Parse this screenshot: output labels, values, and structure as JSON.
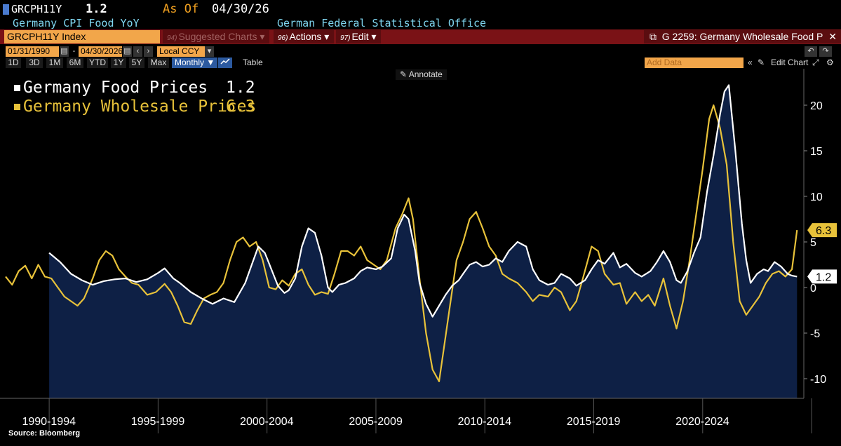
{
  "header": {
    "ticker": "GRCPH11Y",
    "last_value": "1.2",
    "as_of_label": "As Of",
    "as_of_date": "04/30/26",
    "description": "Germany CPI Food YoY",
    "source_org": "German Federal Statistical Office"
  },
  "toolbar": {
    "security": "GRCPH11Y Index",
    "suggested_num": "94)",
    "suggested_label": "Suggested Charts",
    "actions_num": "96)",
    "actions_label": "Actions",
    "edit_num": "97)",
    "edit_label": "Edit",
    "chart_title": "G 2259: Germany Wholesale Food P"
  },
  "date_controls": {
    "start_date": "01/31/1990",
    "end_date": "04/30/2026",
    "currency": "Local CCY"
  },
  "periods": [
    "1D",
    "3D",
    "1M",
    "6M",
    "YTD",
    "1Y",
    "5Y",
    "Max"
  ],
  "frequency": "Monthly",
  "table_label": "Table",
  "add_data_placeholder": "Add Data",
  "edit_chart_label": "Edit Chart",
  "annotate_label": "Annotate",
  "legend": {
    "series": [
      {
        "name": "Germany Food Prices",
        "value": "1.2",
        "color": "#ffffff"
      },
      {
        "name": "Germany Wholesale Prices",
        "value": "6.3",
        "color": "#e8c23a"
      }
    ]
  },
  "source": "Source: Bloomberg",
  "colors": {
    "area_fill": "#0e2045",
    "food_line": "#ffffff",
    "wholesale_line": "#e8c23a",
    "brand_orange": "#f2a64a",
    "toolbar_red": "#7a1216"
  },
  "icons": [
    "square-bullet-icon",
    "calendar-icon",
    "chevron-left-icon",
    "chevron-right-icon",
    "dropdown-arrow-icon",
    "line-chart-icon",
    "external-link-icon",
    "undo-icon",
    "redo-icon",
    "pencil-icon",
    "gear-icon",
    "double-chevron-left-icon",
    "close-icon"
  ],
  "chart_data": {
    "type": "line",
    "x_labels": [
      "1990-1994",
      "1995-1999",
      "2000-2004",
      "2005-2009",
      "2010-2014",
      "2015-2019",
      "2020-2024"
    ],
    "y_ticks": [
      20,
      15,
      10,
      5,
      0,
      -5,
      -10
    ],
    "ylim": [
      -12,
      23.5
    ],
    "xlim": [
      1990.0,
      2026.45
    ],
    "grid": false,
    "legend_position": "top-left",
    "series": [
      {
        "name": "Germany Food Prices",
        "style": "line+area",
        "last_label": "1.2",
        "points": [
          [
            1992.0,
            3.8
          ],
          [
            1992.5,
            2.8
          ],
          [
            1993.0,
            1.5
          ],
          [
            1993.5,
            0.8
          ],
          [
            1994.0,
            0.3
          ],
          [
            1994.5,
            0.7
          ],
          [
            1995.0,
            0.9
          ],
          [
            1995.5,
            1.0
          ],
          [
            1996.0,
            0.6
          ],
          [
            1996.5,
            0.9
          ],
          [
            1997.0,
            1.6
          ],
          [
            1997.3,
            2.1
          ],
          [
            1997.7,
            1.0
          ],
          [
            1998.0,
            0.5
          ],
          [
            1998.5,
            -0.5
          ],
          [
            1999.0,
            -1.2
          ],
          [
            1999.5,
            -1.8
          ],
          [
            2000.0,
            -1.2
          ],
          [
            2000.5,
            -1.6
          ],
          [
            2001.0,
            0.5
          ],
          [
            2001.3,
            2.5
          ],
          [
            2001.6,
            4.5
          ],
          [
            2001.9,
            3.8
          ],
          [
            2002.2,
            2.0
          ],
          [
            2002.5,
            0.2
          ],
          [
            2002.8,
            -0.6
          ],
          [
            2003.0,
            -0.3
          ],
          [
            2003.3,
            1.0
          ],
          [
            2003.6,
            4.5
          ],
          [
            2003.9,
            6.5
          ],
          [
            2004.2,
            6.0
          ],
          [
            2004.5,
            3.5
          ],
          [
            2004.8,
            0.0
          ],
          [
            2005.0,
            -0.5
          ],
          [
            2005.3,
            0.3
          ],
          [
            2005.6,
            0.5
          ],
          [
            2006.0,
            1.0
          ],
          [
            2006.3,
            1.8
          ],
          [
            2006.6,
            2.2
          ],
          [
            2007.0,
            2.0
          ],
          [
            2007.3,
            2.3
          ],
          [
            2007.7,
            3.2
          ],
          [
            2008.0,
            6.5
          ],
          [
            2008.3,
            8.0
          ],
          [
            2008.5,
            7.5
          ],
          [
            2008.8,
            4.0
          ],
          [
            2009.0,
            0.5
          ],
          [
            2009.3,
            -1.8
          ],
          [
            2009.6,
            -3.2
          ],
          [
            2009.9,
            -2.0
          ],
          [
            2010.2,
            -0.8
          ],
          [
            2010.5,
            0.2
          ],
          [
            2010.8,
            0.8
          ],
          [
            2011.0,
            1.5
          ],
          [
            2011.3,
            2.5
          ],
          [
            2011.6,
            2.8
          ],
          [
            2011.9,
            2.3
          ],
          [
            2012.2,
            2.5
          ],
          [
            2012.5,
            3.2
          ],
          [
            2012.8,
            2.8
          ],
          [
            2013.1,
            4.0
          ],
          [
            2013.5,
            5.0
          ],
          [
            2013.9,
            4.5
          ],
          [
            2014.2,
            2.0
          ],
          [
            2014.5,
            0.8
          ],
          [
            2014.9,
            0.3
          ],
          [
            2015.2,
            0.5
          ],
          [
            2015.5,
            1.5
          ],
          [
            2015.9,
            1.0
          ],
          [
            2016.2,
            0.2
          ],
          [
            2016.6,
            0.8
          ],
          [
            2016.9,
            2.0
          ],
          [
            2017.2,
            3.0
          ],
          [
            2017.5,
            2.6
          ],
          [
            2017.9,
            3.8
          ],
          [
            2018.2,
            2.2
          ],
          [
            2018.5,
            2.6
          ],
          [
            2018.9,
            1.6
          ],
          [
            2019.2,
            1.2
          ],
          [
            2019.6,
            1.8
          ],
          [
            2019.9,
            2.8
          ],
          [
            2020.2,
            4.0
          ],
          [
            2020.5,
            2.8
          ],
          [
            2020.8,
            0.8
          ],
          [
            2021.0,
            0.5
          ],
          [
            2021.3,
            1.8
          ],
          [
            2021.6,
            3.8
          ],
          [
            2021.9,
            5.5
          ],
          [
            2022.2,
            10.5
          ],
          [
            2022.5,
            14.5
          ],
          [
            2022.8,
            19.0
          ],
          [
            2023.0,
            21.5
          ],
          [
            2023.2,
            22.2
          ],
          [
            2023.5,
            15.0
          ],
          [
            2023.8,
            7.0
          ],
          [
            2024.0,
            3.0
          ],
          [
            2024.2,
            0.5
          ],
          [
            2024.5,
            1.5
          ],
          [
            2024.8,
            2.0
          ],
          [
            2025.0,
            1.8
          ],
          [
            2025.3,
            2.8
          ],
          [
            2025.6,
            2.3
          ],
          [
            2025.9,
            1.5
          ],
          [
            2026.1,
            1.3
          ],
          [
            2026.33,
            1.2
          ]
        ]
      },
      {
        "name": "Germany Wholesale Prices",
        "style": "line",
        "last_label": "6.3",
        "points": [
          [
            1990.0,
            1.2
          ],
          [
            1990.3,
            0.3
          ],
          [
            1990.6,
            1.8
          ],
          [
            1990.9,
            2.4
          ],
          [
            1991.2,
            1.0
          ],
          [
            1991.5,
            2.5
          ],
          [
            1991.8,
            1.2
          ],
          [
            1992.1,
            1.0
          ],
          [
            1992.4,
            0.0
          ],
          [
            1992.7,
            -1.0
          ],
          [
            1993.0,
            -1.5
          ],
          [
            1993.3,
            -2.0
          ],
          [
            1993.6,
            -1.2
          ],
          [
            1994.0,
            1.0
          ],
          [
            1994.3,
            3.0
          ],
          [
            1994.6,
            4.0
          ],
          [
            1994.9,
            3.5
          ],
          [
            1995.2,
            2.0
          ],
          [
            1995.5,
            1.2
          ],
          [
            1995.8,
            0.5
          ],
          [
            1996.1,
            0.3
          ],
          [
            1996.5,
            -0.8
          ],
          [
            1996.9,
            -0.5
          ],
          [
            1997.3,
            0.4
          ],
          [
            1997.6,
            -0.5
          ],
          [
            1997.9,
            -2.0
          ],
          [
            1998.2,
            -3.8
          ],
          [
            1998.5,
            -4.0
          ],
          [
            1998.8,
            -2.5
          ],
          [
            1999.1,
            -1.2
          ],
          [
            1999.4,
            -0.8
          ],
          [
            1999.7,
            -0.5
          ],
          [
            2000.0,
            0.5
          ],
          [
            2000.3,
            3.0
          ],
          [
            2000.6,
            5.0
          ],
          [
            2000.9,
            5.5
          ],
          [
            2001.2,
            4.5
          ],
          [
            2001.5,
            5.0
          ],
          [
            2001.8,
            3.0
          ],
          [
            2002.1,
            0.0
          ],
          [
            2002.4,
            -0.2
          ],
          [
            2002.7,
            0.8
          ],
          [
            2003.0,
            0.2
          ],
          [
            2003.3,
            1.5
          ],
          [
            2003.6,
            2.0
          ],
          [
            2003.9,
            0.3
          ],
          [
            2004.2,
            -0.8
          ],
          [
            2004.5,
            -0.5
          ],
          [
            2004.8,
            -0.7
          ],
          [
            2005.1,
            1.5
          ],
          [
            2005.4,
            4.0
          ],
          [
            2005.7,
            4.0
          ],
          [
            2006.0,
            3.5
          ],
          [
            2006.3,
            4.5
          ],
          [
            2006.6,
            3.0
          ],
          [
            2006.9,
            2.5
          ],
          [
            2007.2,
            2.0
          ],
          [
            2007.5,
            3.0
          ],
          [
            2007.9,
            6.5
          ],
          [
            2008.2,
            8.0
          ],
          [
            2008.5,
            9.8
          ],
          [
            2008.7,
            7.5
          ],
          [
            2009.0,
            1.0
          ],
          [
            2009.3,
            -5.0
          ],
          [
            2009.6,
            -9.0
          ],
          [
            2009.9,
            -10.3
          ],
          [
            2010.1,
            -7.0
          ],
          [
            2010.4,
            -2.0
          ],
          [
            2010.7,
            3.0
          ],
          [
            2011.0,
            5.0
          ],
          [
            2011.3,
            7.5
          ],
          [
            2011.6,
            8.3
          ],
          [
            2011.9,
            6.5
          ],
          [
            2012.2,
            4.5
          ],
          [
            2012.5,
            3.5
          ],
          [
            2012.8,
            1.5
          ],
          [
            2013.1,
            1.0
          ],
          [
            2013.5,
            0.5
          ],
          [
            2013.9,
            -0.5
          ],
          [
            2014.2,
            -1.5
          ],
          [
            2014.5,
            -0.8
          ],
          [
            2014.9,
            -1.0
          ],
          [
            2015.2,
            0.0
          ],
          [
            2015.5,
            -0.5
          ],
          [
            2015.9,
            -2.5
          ],
          [
            2016.2,
            -1.5
          ],
          [
            2016.5,
            1.0
          ],
          [
            2016.9,
            4.5
          ],
          [
            2017.2,
            4.0
          ],
          [
            2017.5,
            1.5
          ],
          [
            2017.9,
            0.3
          ],
          [
            2018.2,
            0.5
          ],
          [
            2018.5,
            -1.8
          ],
          [
            2018.9,
            -0.5
          ],
          [
            2019.2,
            -1.5
          ],
          [
            2019.5,
            -0.8
          ],
          [
            2019.8,
            -2.0
          ],
          [
            2020.2,
            1.0
          ],
          [
            2020.5,
            -2.0
          ],
          [
            2020.8,
            -4.5
          ],
          [
            2021.1,
            -1.5
          ],
          [
            2021.4,
            3.0
          ],
          [
            2021.7,
            8.0
          ],
          [
            2022.0,
            13.0
          ],
          [
            2022.3,
            18.5
          ],
          [
            2022.5,
            20.0
          ],
          [
            2022.8,
            17.5
          ],
          [
            2023.1,
            13.5
          ],
          [
            2023.4,
            5.0
          ],
          [
            2023.7,
            -1.5
          ],
          [
            2024.0,
            -3.0
          ],
          [
            2024.3,
            -2.0
          ],
          [
            2024.6,
            -1.0
          ],
          [
            2024.9,
            0.5
          ],
          [
            2025.2,
            1.5
          ],
          [
            2025.5,
            1.8
          ],
          [
            2025.8,
            1.2
          ],
          [
            2026.1,
            2.0
          ],
          [
            2026.33,
            6.3
          ]
        ]
      }
    ]
  }
}
